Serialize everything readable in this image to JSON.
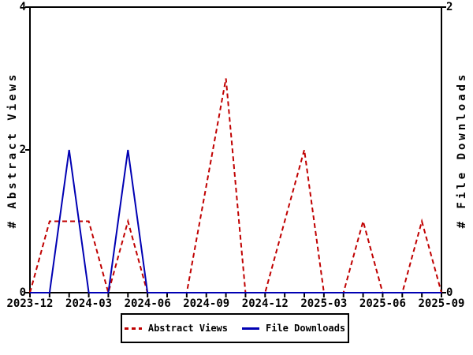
{
  "chart_data": {
    "type": "line",
    "background": "#ffffff",
    "axis_color": "#000000",
    "grid": false,
    "legend_position": "bottom",
    "x_months": [
      "2023-12",
      "2024-01",
      "2024-02",
      "2024-03",
      "2024-04",
      "2024-05",
      "2024-06",
      "2024-07",
      "2024-08",
      "2024-09",
      "2024-10",
      "2024-11",
      "2024-12",
      "2025-01",
      "2025-02",
      "2025-03",
      "2025-04",
      "2025-05",
      "2025-06",
      "2025-07",
      "2025-08",
      "2025-09"
    ],
    "x_tick_labels": [
      "2023-12",
      "2024-03",
      "2024-06",
      "2024-09",
      "2024-12",
      "2025-03",
      "2025-06",
      "2025-09"
    ],
    "left_axis": {
      "label": "# Abstract Views",
      "range": [
        0,
        4
      ],
      "ticks": [
        0,
        2,
        4
      ]
    },
    "right_axis": {
      "label": "# File Downloads",
      "range": [
        0,
        2
      ],
      "ticks": [
        0,
        2
      ]
    },
    "series": [
      {
        "name": "Abstract Views",
        "axis": "left",
        "color": "#c00000",
        "style": "dashed",
        "points": [
          [
            "2023-12",
            0
          ],
          [
            "2024-01",
            1
          ],
          [
            "2024-02",
            1
          ],
          [
            "2024-03",
            1
          ],
          [
            "2024-04",
            0
          ],
          [
            "2024-05",
            1
          ],
          [
            "2024-06",
            0
          ],
          [
            "2024-07",
            0
          ],
          [
            "2024-08",
            0
          ],
          [
            "2024-10",
            3
          ],
          [
            "2024-11",
            0
          ],
          [
            "2024-12",
            0
          ],
          [
            "2025-01",
            1
          ],
          [
            "2025-02",
            2
          ],
          [
            "2025-03",
            0
          ],
          [
            "2025-04",
            0
          ],
          [
            "2025-05",
            1
          ],
          [
            "2025-06",
            0
          ],
          [
            "2025-07",
            0
          ],
          [
            "2025-08",
            1
          ],
          [
            "2025-09",
            0
          ]
        ]
      },
      {
        "name": "File Downloads",
        "axis": "right",
        "color": "#0000b3",
        "style": "solid",
        "points": [
          [
            "2023-12",
            0
          ],
          [
            "2024-01",
            0
          ],
          [
            "2024-02",
            1
          ],
          [
            "2024-03",
            0
          ],
          [
            "2024-04",
            0
          ],
          [
            "2024-05",
            1
          ],
          [
            "2024-06",
            0
          ],
          [
            "2024-07",
            0
          ],
          [
            "2024-08",
            0
          ],
          [
            "2024-09",
            0
          ],
          [
            "2024-10",
            0
          ],
          [
            "2024-11",
            0
          ],
          [
            "2024-12",
            0
          ],
          [
            "2025-01",
            0
          ],
          [
            "2025-02",
            0
          ],
          [
            "2025-03",
            0
          ],
          [
            "2025-04",
            0
          ],
          [
            "2025-05",
            0
          ],
          [
            "2025-06",
            0
          ],
          [
            "2025-07",
            0
          ],
          [
            "2025-08",
            0
          ],
          [
            "2025-09",
            0
          ]
        ]
      }
    ]
  },
  "legend": {
    "abstract_views": "Abstract Views",
    "file_downloads": "File Downloads"
  },
  "axis_titles": {
    "left": "# Abstract Views",
    "right": "# File Downloads"
  }
}
